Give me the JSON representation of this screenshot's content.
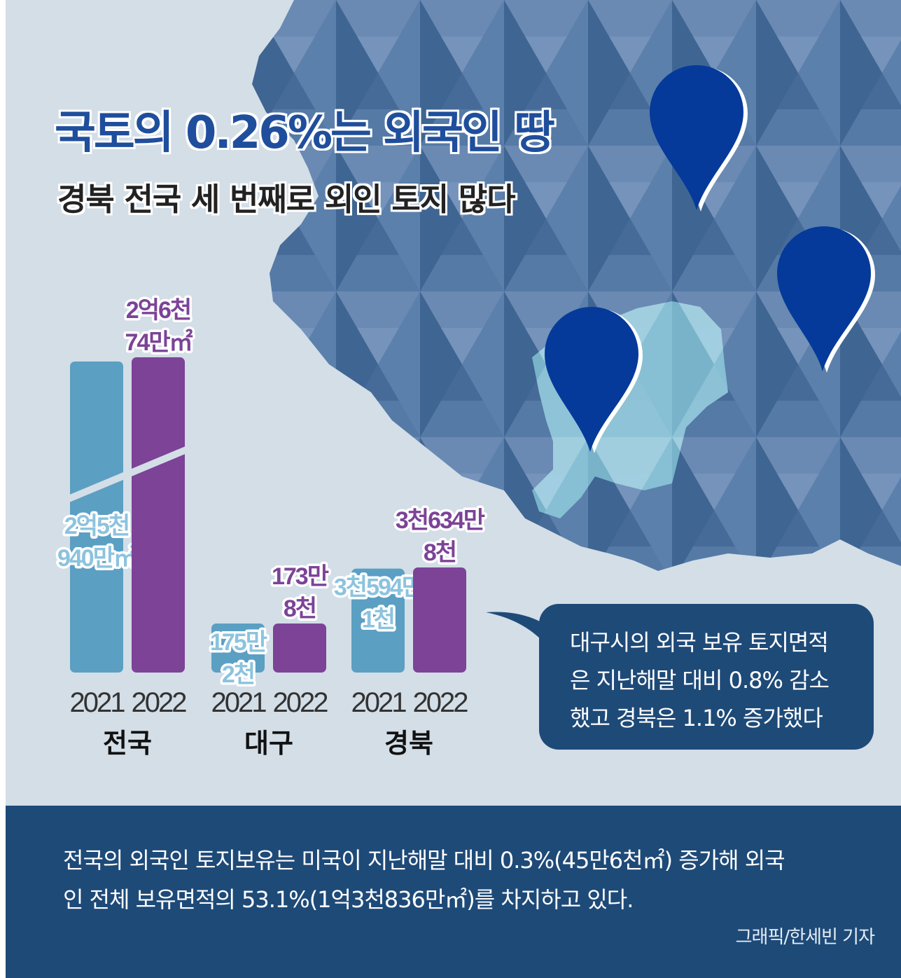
{
  "title": "국토의 0.26%는 외국인 땅",
  "subtitle": "경북 전국 세 번째로 외인 토지 많다",
  "chart_data": {
    "type": "bar",
    "groups": [
      "전국",
      "대구",
      "경북"
    ],
    "years": [
      "2021",
      "2022"
    ],
    "series": [
      {
        "name": "2021",
        "values": [
          259400000,
          1752000,
          35941000
        ],
        "labels": [
          "2억5천\n940만㎡",
          "175만\n2천",
          "3천594만\n1천"
        ]
      },
      {
        "name": "2022",
        "values": [
          266740000,
          1738000,
          36348000
        ],
        "labels": [
          "2억6천\n74만㎡",
          "173만\n8천",
          "3천634만\n8천"
        ]
      }
    ],
    "axis_break_group": "전국"
  },
  "callout": {
    "lines": [
      "대구시의 외국 보유 토지면적",
      "은 지난해말 대비 0.8% 감소",
      "했고 경북은 1.1% 증가했다"
    ]
  },
  "footer": {
    "lines": [
      "전국의 외국인 토지보유는  미국이 지난해말 대비 0.3%(45만6천㎡) 증가해 외국",
      "인 전체 보유면적의 53.1%(1억3천836만㎡)를 차지하고 있다."
    ],
    "credit": "그래픽/한세빈 기자"
  },
  "colors": {
    "background": "#d3dee7",
    "bar_2021": "#5b9fc3",
    "bar_2022": "#7c4397",
    "dark_panel": "#1e4a78",
    "pin": "#053a9a",
    "title_blue": "#1f4e9c"
  },
  "icons": [
    "location-pin-icon",
    "location-pin-icon",
    "location-pin-icon",
    "speech-bubble-tail-icon"
  ]
}
